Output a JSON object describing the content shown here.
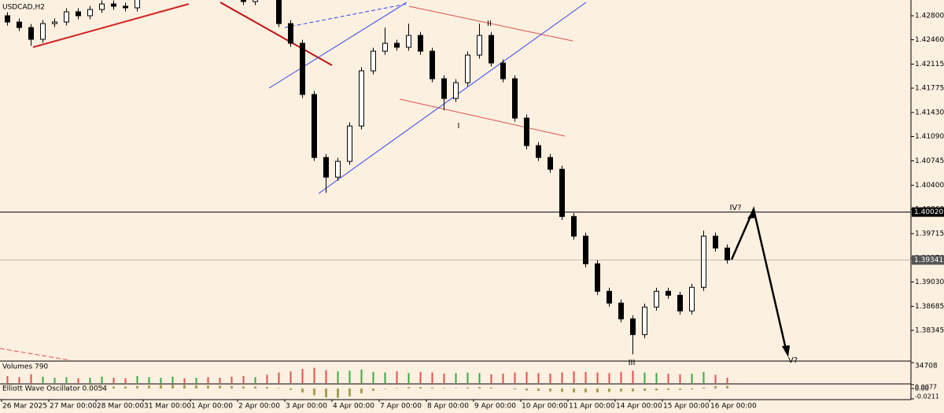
{
  "chart_data": {
    "type": "candlestick",
    "title": "USDCAD,H2",
    "categories": [
      "26 Mar 2025",
      null,
      null,
      null,
      "27 Mar 00:00",
      null,
      null,
      null,
      "28 Mar 00:00",
      null,
      null,
      null,
      "31 Mar 00:00",
      null,
      null,
      null,
      "1 Apr 00:00",
      null,
      null,
      null,
      "2 Apr 00:00",
      null,
      null,
      null,
      "3 Apr 00:00",
      null,
      null,
      null,
      "4 Apr 00:00",
      null,
      null,
      null,
      "7 Apr 00:00",
      null,
      null,
      null,
      "8 Apr 00:00",
      null,
      null,
      null,
      "9 Apr 00:00",
      null,
      null,
      null,
      "10 Apr 00:00",
      null,
      null,
      null,
      "11 Apr 00:00",
      null,
      null,
      null,
      "14 Apr 00:00",
      null,
      null,
      null,
      "15 Apr 00:00",
      null,
      null,
      null,
      "16 Apr 00:00",
      null
    ],
    "open": [
      1.428,
      1.42711,
      1.42633,
      1.42466,
      1.42689,
      1.42711,
      1.42856,
      1.428,
      1.42889,
      1.42967,
      1.42934,
      1.42912,
      1.43134,
      1.43357,
      1.43469,
      1.43525,
      1.43413,
      1.43469,
      1.43302,
      1.4319,
      1.43079,
      1.43001,
      1.43134,
      1.43079,
      1.42689,
      1.4241,
      1.41685,
      1.40793,
      1.40515,
      1.40738,
      1.41239,
      1.4202,
      1.42298,
      1.4241,
      1.42354,
      1.42521,
      1.42298,
      1.41908,
      1.41629,
      1.41852,
      1.42243,
      1.42521,
      1.42131,
      1.41908,
      1.41351,
      1.40961,
      1.40793,
      1.40626,
      1.39957,
      1.39679,
      1.39288,
      1.38898,
      1.38731,
      1.38508,
      1.38285,
      1.38675,
      1.38898,
      1.38842,
      1.3862,
      1.38954,
      1.39679,
      1.39511
    ],
    "high": [
      1.4285,
      1.42761,
      1.42683,
      1.42739,
      1.42761,
      1.42906,
      1.42906,
      1.42939,
      1.43017,
      1.43017,
      1.42984,
      1.43184,
      1.43407,
      1.43519,
      1.43575,
      1.43575,
      1.43519,
      1.43519,
      1.43352,
      1.4324,
      1.43129,
      1.43184,
      1.43184,
      1.43129,
      1.42739,
      1.4246,
      1.41735,
      1.40843,
      1.40788,
      1.41289,
      1.4207,
      1.42348,
      1.42633,
      1.4246,
      1.42689,
      1.42571,
      1.42348,
      1.41958,
      1.41902,
      1.42293,
      1.42689,
      1.42571,
      1.42181,
      1.41958,
      1.41401,
      1.41011,
      1.40843,
      1.40676,
      1.40007,
      1.39729,
      1.39338,
      1.38948,
      1.38781,
      1.38558,
      1.38725,
      1.38948,
      1.38948,
      1.38892,
      1.39004,
      1.39757,
      1.39729,
      1.39561
    ],
    "low": [
      1.42661,
      1.42583,
      1.42376,
      1.42416,
      1.42639,
      1.42661,
      1.4275,
      1.4275,
      1.42839,
      1.42884,
      1.42862,
      1.42862,
      1.43084,
      1.43307,
      1.43419,
      1.43363,
      1.43363,
      1.43252,
      1.4314,
      1.43029,
      1.42951,
      1.42951,
      1.43029,
      1.42639,
      1.4236,
      1.41635,
      1.40743,
      1.40292,
      1.40465,
      1.40688,
      1.41189,
      1.4197,
      1.42248,
      1.42304,
      1.42304,
      1.42248,
      1.41858,
      1.41462,
      1.41579,
      1.41802,
      1.42193,
      1.42081,
      1.41858,
      1.41301,
      1.40911,
      1.40743,
      1.40576,
      1.39907,
      1.39629,
      1.39238,
      1.38848,
      1.38681,
      1.38458,
      1.38006,
      1.38235,
      1.38625,
      1.38792,
      1.3857,
      1.3857,
      1.38904,
      1.39461,
      1.39291
    ],
    "close": [
      1.42711,
      1.42633,
      1.42466,
      1.42689,
      1.42711,
      1.42856,
      1.428,
      1.42889,
      1.42967,
      1.42934,
      1.42912,
      1.43134,
      1.43357,
      1.43469,
      1.43525,
      1.43413,
      1.43469,
      1.43302,
      1.4319,
      1.43079,
      1.43001,
      1.43134,
      1.43079,
      1.42689,
      1.4241,
      1.41685,
      1.40793,
      1.40515,
      1.40738,
      1.41239,
      1.4202,
      1.42298,
      1.4241,
      1.42354,
      1.42521,
      1.42298,
      1.41908,
      1.41629,
      1.41852,
      1.42243,
      1.42521,
      1.42131,
      1.41908,
      1.41351,
      1.40961,
      1.40793,
      1.40626,
      1.39957,
      1.39679,
      1.39288,
      1.38898,
      1.38731,
      1.38508,
      1.38285,
      1.38675,
      1.38898,
      1.38842,
      1.3862,
      1.38954,
      1.39679,
      1.39511,
      1.39341
    ],
    "ylim": [
      1.37921,
      1.43023
    ],
    "yticks": [
      {
        "value": 1.428,
        "label": "1.42800"
      },
      {
        "value": 1.4246,
        "label": "1.42460"
      },
      {
        "value": 1.42115,
        "label": "1.42115"
      },
      {
        "value": 1.41775,
        "label": "1.41775"
      },
      {
        "value": 1.4143,
        "label": "1.41430"
      },
      {
        "value": 1.4109,
        "label": "1.41090"
      },
      {
        "value": 1.40745,
        "label": "1.40745"
      },
      {
        "value": 1.404,
        "label": "1.40400"
      },
      {
        "value": 1.4006,
        "label": "1.40060"
      },
      {
        "value": 1.39715,
        "label": "1.39715"
      },
      {
        "value": 1.3937,
        "label": "1.39370"
      },
      {
        "value": 1.3903,
        "label": "1.39030"
      },
      {
        "value": 1.38685,
        "label": "1.38685"
      },
      {
        "value": 1.38345,
        "label": "1.38345"
      }
    ],
    "hlines": [
      {
        "value": 1.4002,
        "label": "1.40020",
        "color": "#000000"
      },
      {
        "value": 1.39341,
        "label": "1.39341",
        "color": "#555555"
      }
    ],
    "annotations": [
      "I",
      "II",
      "III",
      "IV?",
      "V?"
    ],
    "volume": {
      "title": "Volumes 790",
      "ylim": [
        0,
        34708
      ],
      "yticks": [
        34708
      ],
      "values": [
        12000,
        10000,
        15000,
        11000,
        9000,
        10000,
        8000,
        9000,
        11000,
        9000,
        8000,
        12000,
        10000,
        9000,
        11000,
        8000,
        9000,
        10000,
        9000,
        11000,
        12000,
        10000,
        14000,
        18000,
        20000,
        24000,
        26000,
        22000,
        20000,
        21000,
        23000,
        19000,
        18000,
        20000,
        17000,
        19000,
        18000,
        16000,
        17000,
        18000,
        17000,
        15000,
        16000,
        18000,
        19000,
        17000,
        16000,
        18000,
        20000,
        19000,
        18000,
        17000,
        19000,
        21000,
        18000,
        17000,
        16000,
        15000,
        16000,
        19000,
        14000,
        9000
      ]
    },
    "oscillator": {
      "title": "Elliott Wave Oscillator 0.0054",
      "color": "#a69f55",
      "ylim": [
        -0.0211,
        0.0077
      ],
      "yticks": [
        0.0077,
        {
          "value": 0,
          "label": "0.00"
        },
        -0.0211
      ],
      "values": [
        0.001,
        0.0005,
        -0.001,
        0.0005,
        0.001,
        0.002,
        0.002,
        0.003,
        0.004,
        0.004,
        0.004,
        0.005,
        0.006,
        0.007,
        0.0075,
        0.007,
        0.0065,
        0.006,
        0.0055,
        0.005,
        0.004,
        0.004,
        0.003,
        0.001,
        -0.003,
        -0.008,
        -0.014,
        -0.018,
        -0.019,
        -0.016,
        -0.01,
        -0.005,
        -0.001,
        0.001,
        0.003,
        0.003,
        0.002,
        0.001,
        0.001,
        0.002,
        0.003,
        0.002,
        0,
        -0.002,
        -0.004,
        -0.005,
        -0.006,
        -0.007,
        -0.008,
        -0.008,
        -0.008,
        -0.007,
        -0.006,
        -0.006,
        -0.005,
        -0.004,
        -0.003,
        -0.003,
        -0.002,
        0.002,
        0.005,
        0.0054
      ]
    }
  }
}
